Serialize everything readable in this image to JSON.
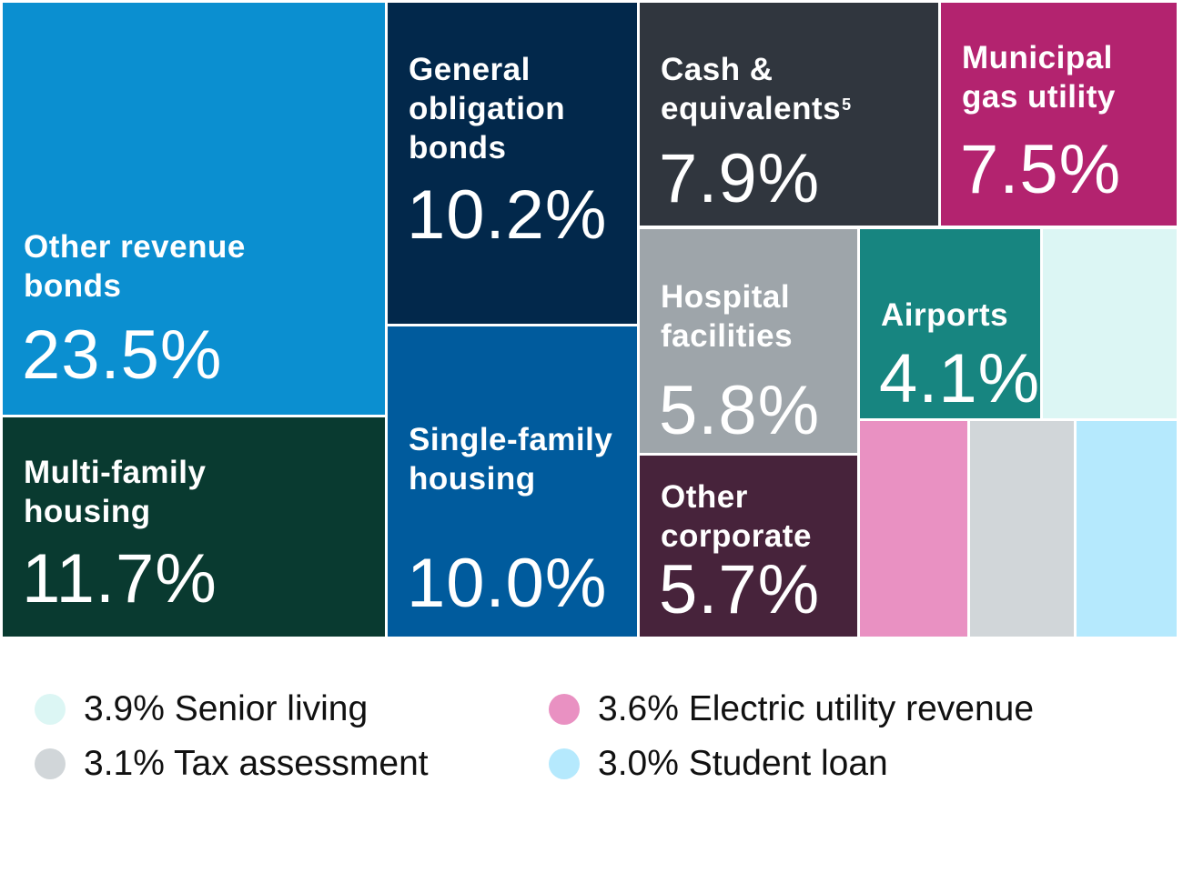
{
  "chart_data": {
    "type": "treemap",
    "unit": "%",
    "items": [
      {
        "label": "Other revenue\nbonds",
        "value": 23.5,
        "value_text": "23.5%",
        "color": "#0b8fd0"
      },
      {
        "label": "General\nobligation\nbonds",
        "value": 10.2,
        "value_text": "10.2%",
        "color": "#02284b"
      },
      {
        "label": "Cash &\nequivalents",
        "superscript": "5",
        "value": 7.9,
        "value_text": "7.9%",
        "color": "#30363e"
      },
      {
        "label": "Municipal\ngas utility",
        "value": 7.5,
        "value_text": "7.5%",
        "color": "#b3236f"
      },
      {
        "label": "Hospital\nfacilities",
        "value": 5.8,
        "value_text": "5.8%",
        "color": "#9ea5aa"
      },
      {
        "label": "Airports",
        "value": 4.1,
        "value_text": "4.1%",
        "color": "#178580"
      },
      {
        "label": "Senior living",
        "value": 3.9,
        "value_text": "3.9%",
        "color": "#dcf6f4",
        "in_legend": true
      },
      {
        "label": "Multi-family\nhousing",
        "value": 11.7,
        "value_text": "11.7%",
        "color": "#093a30"
      },
      {
        "label": "Single-family\nhousing",
        "value": 10.0,
        "value_text": "10.0%",
        "color": "#005b9d"
      },
      {
        "label": "Other\ncorporate",
        "value": 5.7,
        "value_text": "5.7%",
        "color": "#47233b"
      },
      {
        "label": "Electric utility revenue",
        "value": 3.6,
        "value_text": "3.6%",
        "color": "#e991c2",
        "in_legend": true
      },
      {
        "label": "Tax assessment",
        "value": 3.1,
        "value_text": "3.1%",
        "color": "#d1d6d9",
        "in_legend": true
      },
      {
        "label": "Student loan",
        "value": 3.0,
        "value_text": "3.0%",
        "color": "#b5e9fd",
        "in_legend": true
      }
    ],
    "legend": [
      {
        "text": "3.9% Senior living",
        "color": "#dcf6f4"
      },
      {
        "text": "3.1% Tax assessment",
        "color": "#d1d6d9"
      },
      {
        "text": "3.6% Electric utility revenue",
        "color": "#e991c2"
      },
      {
        "text": "3.0% Student loan",
        "color": "#b5e9fd"
      }
    ]
  }
}
